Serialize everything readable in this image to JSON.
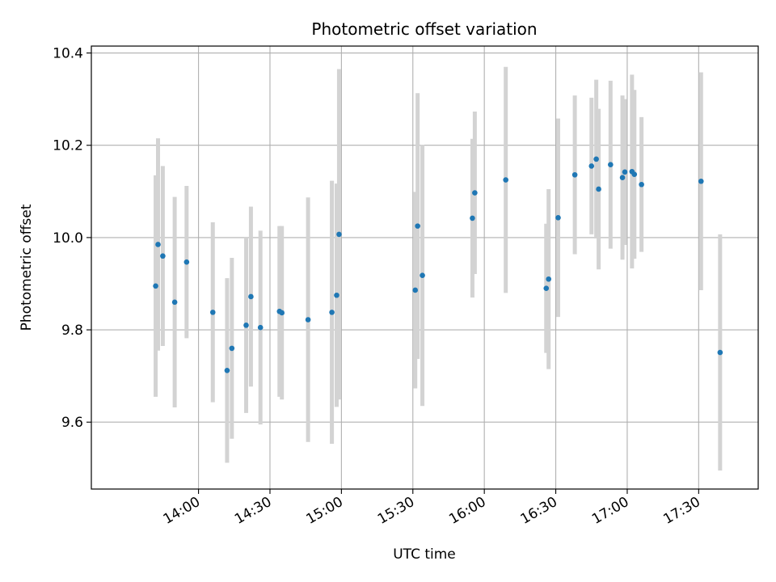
{
  "chart_data": {
    "type": "scatter",
    "title": "Photometric offset variation",
    "xlabel": "UTC time",
    "ylabel": "Photometric offset",
    "xlim": [
      "13:15",
      "17:55"
    ],
    "ylim": [
      9.455,
      10.415
    ],
    "x_ticks": [
      "14:00",
      "14:30",
      "15:00",
      "15:30",
      "16:00",
      "16:30",
      "17:00",
      "17:30"
    ],
    "y_ticks": [
      "9.6",
      "9.8",
      "10.0",
      "10.2",
      "10.4"
    ],
    "grid": true,
    "colors": {
      "point": "#1f77b4",
      "errorbar": "#d3d3d3",
      "grid": "#b0b0b0"
    },
    "points": [
      {
        "x": "13:42",
        "y": 9.895,
        "yerr": 0.24
      },
      {
        "x": "13:43",
        "y": 9.985,
        "yerr": 0.23
      },
      {
        "x": "13:45",
        "y": 9.96,
        "yerr": 0.195
      },
      {
        "x": "13:50",
        "y": 9.86,
        "yerr": 0.228
      },
      {
        "x": "13:55",
        "y": 9.947,
        "yerr": 0.165
      },
      {
        "x": "14:06",
        "y": 9.838,
        "yerr": 0.195
      },
      {
        "x": "14:12",
        "y": 9.712,
        "yerr": 0.2
      },
      {
        "x": "14:14",
        "y": 9.76,
        "yerr": 0.196
      },
      {
        "x": "14:20",
        "y": 9.81,
        "yerr": 0.19
      },
      {
        "x": "14:22",
        "y": 9.872,
        "yerr": 0.195
      },
      {
        "x": "14:26",
        "y": 9.805,
        "yerr": 0.21
      },
      {
        "x": "14:34",
        "y": 9.84,
        "yerr": 0.185
      },
      {
        "x": "14:35",
        "y": 9.837,
        "yerr": 0.188
      },
      {
        "x": "14:46",
        "y": 9.822,
        "yerr": 0.265
      },
      {
        "x": "14:56",
        "y": 9.838,
        "yerr": 0.285
      },
      {
        "x": "14:58",
        "y": 9.875,
        "yerr": 0.242
      },
      {
        "x": "14:59",
        "y": 10.007,
        "yerr": 0.358
      },
      {
        "x": "15:31",
        "y": 9.886,
        "yerr": 0.213
      },
      {
        "x": "15:32",
        "y": 10.025,
        "yerr": 0.288
      },
      {
        "x": "15:34",
        "y": 9.918,
        "yerr": 0.283
      },
      {
        "x": "15:55",
        "y": 10.042,
        "yerr": 0.172
      },
      {
        "x": "15:56",
        "y": 10.097,
        "yerr": 0.176
      },
      {
        "x": "16:09",
        "y": 10.125,
        "yerr": 0.245
      },
      {
        "x": "16:26",
        "y": 9.89,
        "yerr": 0.14
      },
      {
        "x": "16:27",
        "y": 9.91,
        "yerr": 0.195
      },
      {
        "x": "16:31",
        "y": 10.043,
        "yerr": 0.215
      },
      {
        "x": "16:38",
        "y": 10.136,
        "yerr": 0.172
      },
      {
        "x": "16:45",
        "y": 10.155,
        "yerr": 0.148
      },
      {
        "x": "16:47",
        "y": 10.17,
        "yerr": 0.172
      },
      {
        "x": "16:48",
        "y": 10.105,
        "yerr": 0.174
      },
      {
        "x": "16:53",
        "y": 10.158,
        "yerr": 0.182
      },
      {
        "x": "16:58",
        "y": 10.13,
        "yerr": 0.178
      },
      {
        "x": "16:59",
        "y": 10.142,
        "yerr": 0.158
      },
      {
        "x": "17:02",
        "y": 10.143,
        "yerr": 0.21
      },
      {
        "x": "17:03",
        "y": 10.137,
        "yerr": 0.183
      },
      {
        "x": "17:06",
        "y": 10.115,
        "yerr": 0.146
      },
      {
        "x": "17:31",
        "y": 10.122,
        "yerr": 0.236
      },
      {
        "x": "17:39",
        "y": 9.751,
        "yerr": 0.256
      }
    ]
  }
}
